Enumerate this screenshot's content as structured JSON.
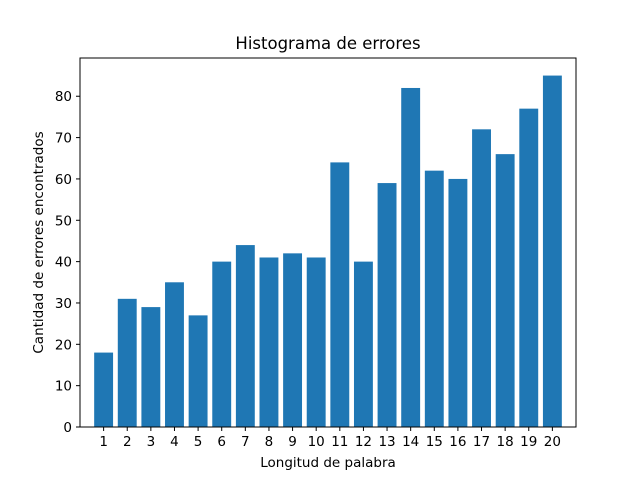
{
  "chart_data": {
    "type": "bar",
    "title": "Histograma de errores",
    "xlabel": "Longitud de palabra",
    "ylabel": "Cantidad de errores encontrados",
    "categories": [
      "1",
      "2",
      "3",
      "4",
      "5",
      "6",
      "7",
      "8",
      "9",
      "10",
      "11",
      "12",
      "13",
      "14",
      "15",
      "16",
      "17",
      "18",
      "19",
      "20"
    ],
    "values": [
      18,
      31,
      29,
      35,
      27,
      40,
      44,
      41,
      42,
      41,
      64,
      40,
      59,
      82,
      62,
      60,
      72,
      66,
      77,
      85
    ],
    "yticks": [
      0,
      10,
      20,
      30,
      40,
      50,
      60,
      70,
      80
    ],
    "ylim": [
      0,
      89.25
    ],
    "xlim": [
      0,
      21
    ],
    "bar_color": "#1f77b4",
    "grid": false,
    "legend": "none"
  }
}
